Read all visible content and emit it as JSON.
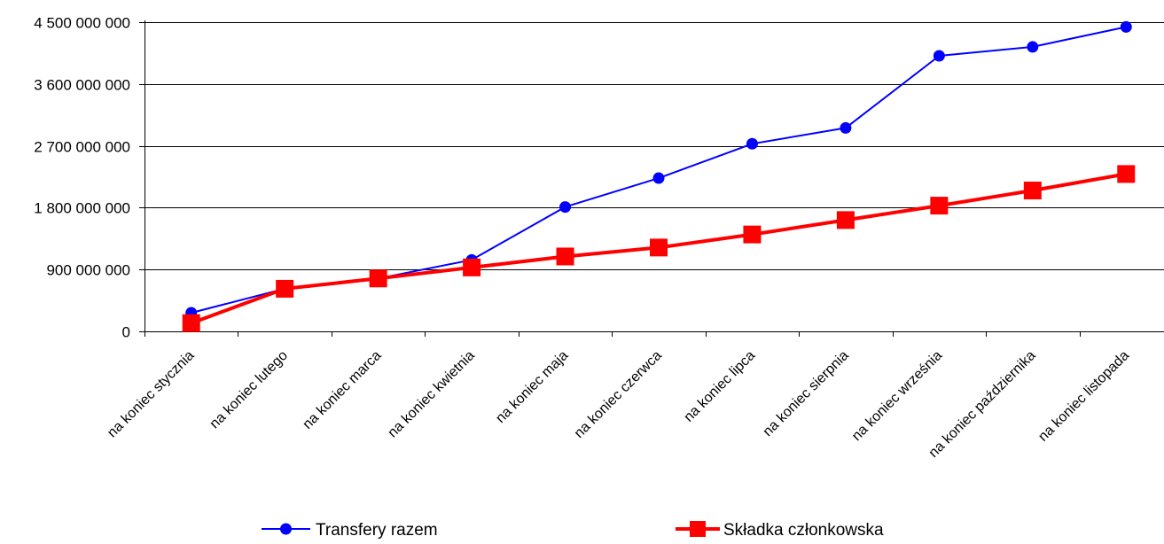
{
  "chart_data": {
    "type": "line",
    "title": "",
    "xlabel": "",
    "ylabel": "",
    "categories": [
      "na koniec stycznia",
      "na koniec lutego",
      "na koniec marca",
      "na koniec kwietnia",
      "na koniec maja",
      "na koniec czerwca",
      "na koniec lipca",
      "na koniec sierpnia",
      "na koniec września",
      "na koniec października",
      "na koniec listopada"
    ],
    "ylim": [
      0,
      4500000000
    ],
    "yticks": [
      0,
      900000000,
      1800000000,
      2700000000,
      3600000000,
      4500000000
    ],
    "ytick_labels": [
      "0",
      "900 000 000",
      "1 800 000 000",
      "2 700 000 000",
      "3 600 000 000",
      "4 500 000 000"
    ],
    "grid": "horizontal",
    "legend_position": "bottom",
    "series": [
      {
        "name": "Transfery razem",
        "color": "#0000ff",
        "marker": "circle",
        "values": [
          270000000,
          620000000,
          770000000,
          1040000000,
          1810000000,
          2230000000,
          2730000000,
          2960000000,
          4010000000,
          4140000000,
          4430000000
        ]
      },
      {
        "name": "Składka członkowska",
        "color": "#ff0000",
        "marker": "square",
        "values": [
          120000000,
          620000000,
          770000000,
          930000000,
          1090000000,
          1220000000,
          1410000000,
          1620000000,
          1830000000,
          2050000000,
          2290000000
        ]
      }
    ]
  }
}
